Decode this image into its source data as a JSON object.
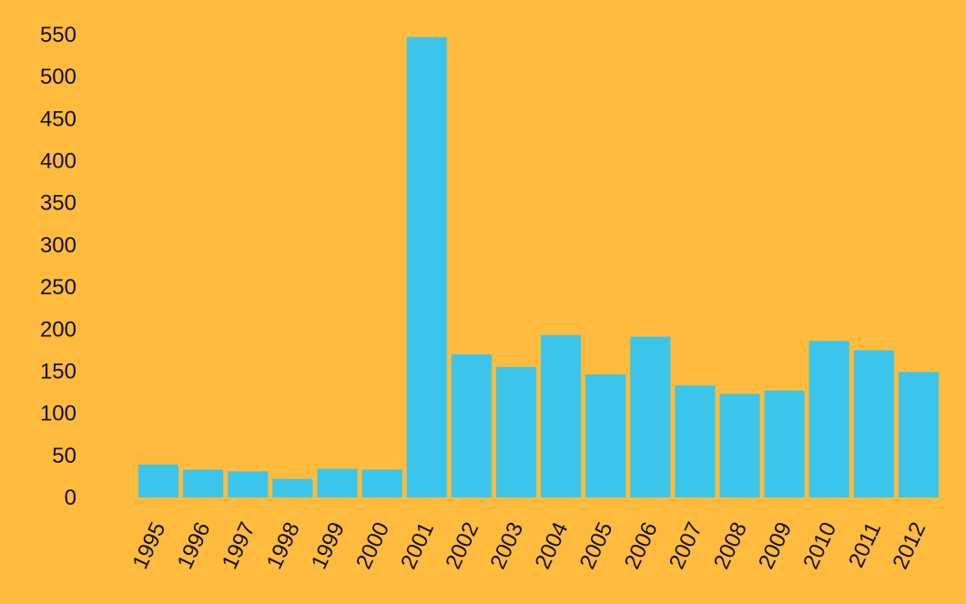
{
  "colors": {
    "background": "#FFBB3D",
    "bar": "#3BC5EA",
    "text": "#111111"
  },
  "chart_data": {
    "type": "bar",
    "title": "",
    "xlabel": "",
    "ylabel": "",
    "categories": [
      "1995",
      "1996",
      "1997",
      "1998",
      "1999",
      "2000",
      "2001",
      "2002",
      "2003",
      "2004",
      "2005",
      "2006",
      "2007",
      "2008",
      "2009",
      "2010",
      "2011",
      "2012"
    ],
    "values": [
      39,
      33,
      31,
      22,
      34,
      33,
      547,
      170,
      155,
      193,
      146,
      191,
      133,
      123,
      127,
      186,
      175,
      149
    ],
    "ylim": [
      0,
      550
    ],
    "yticks": [
      0,
      50,
      100,
      150,
      200,
      250,
      300,
      350,
      400,
      450,
      500,
      550
    ],
    "grid": false,
    "legend": "none"
  }
}
